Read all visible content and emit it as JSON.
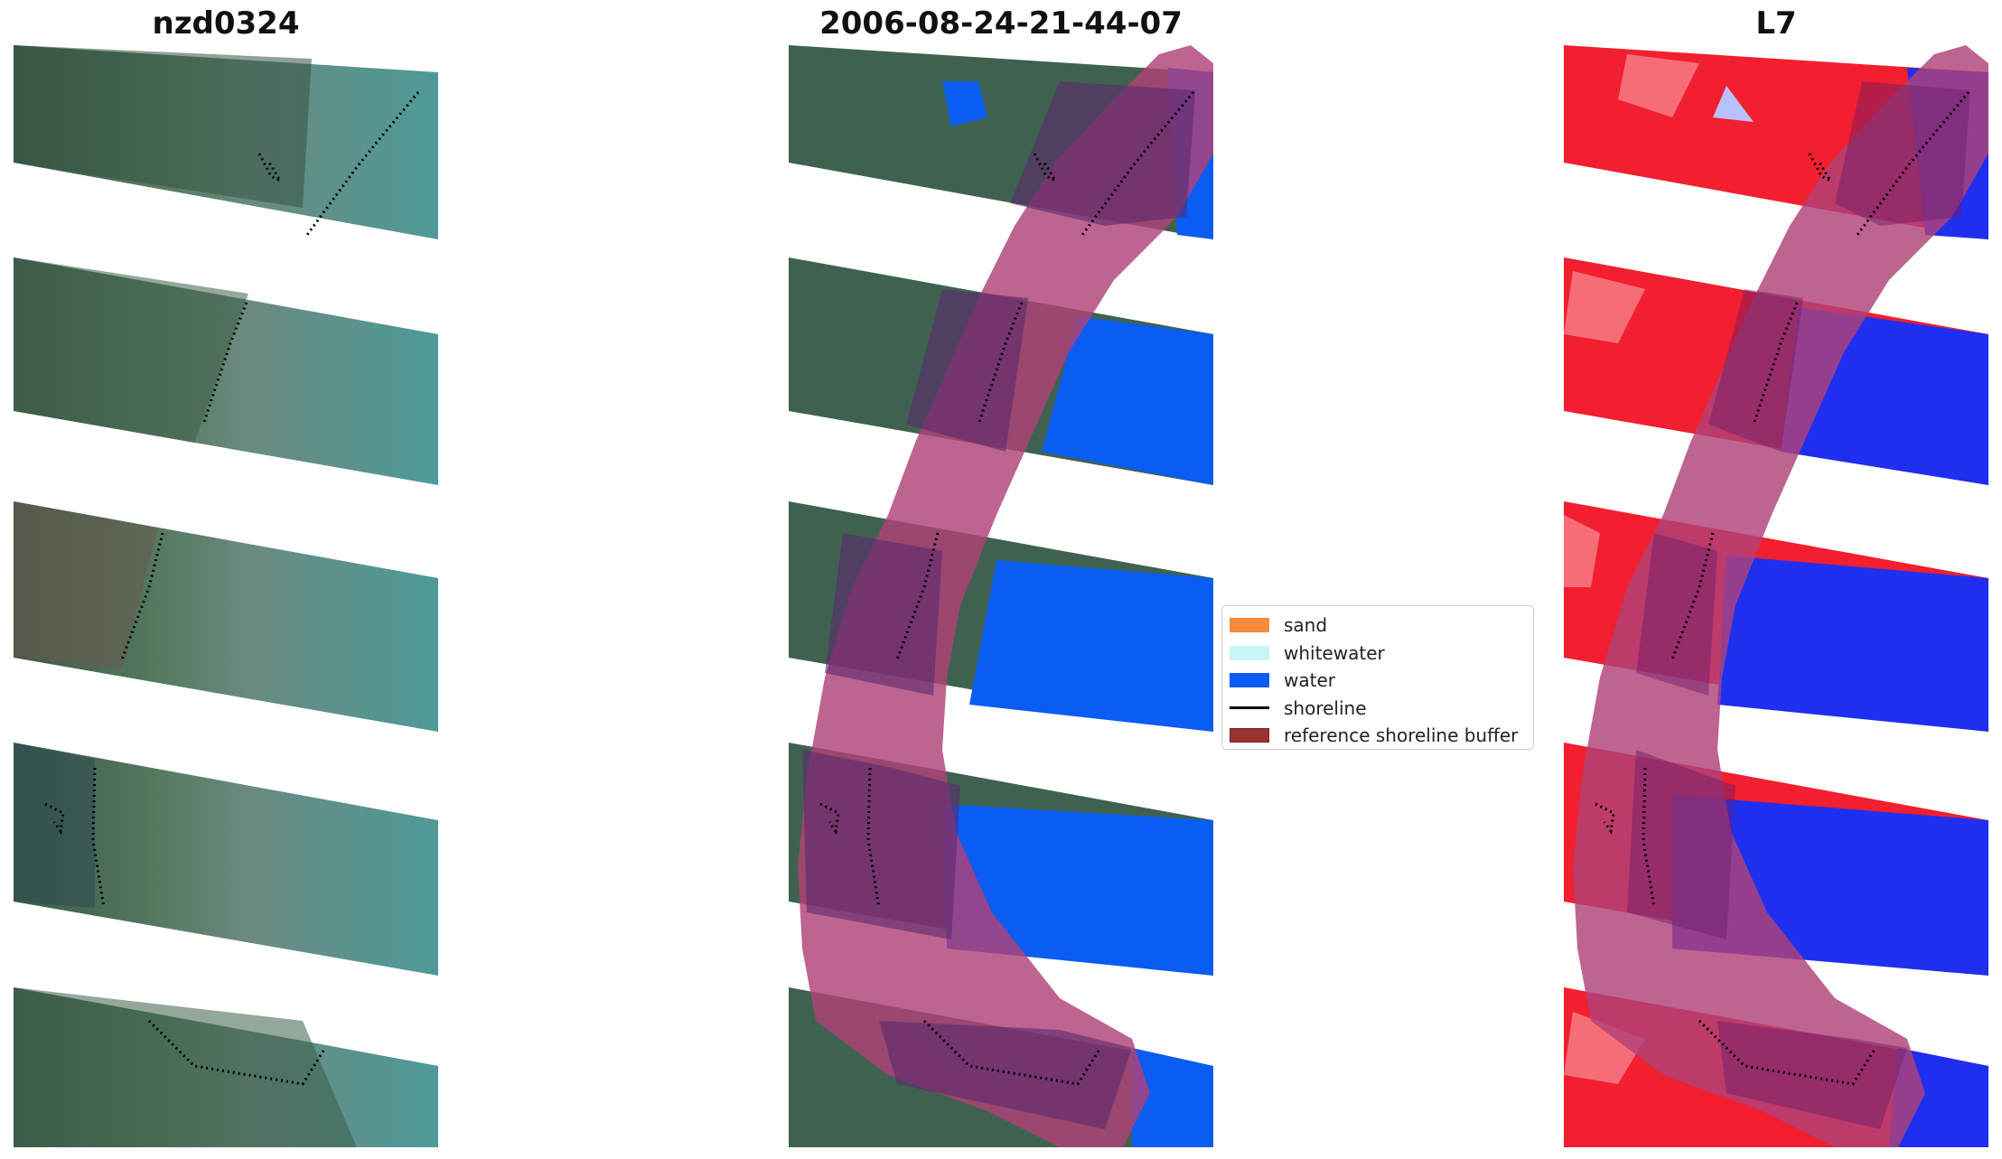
{
  "titles": {
    "left": "nzd0324",
    "center": "2006-08-24-21-44-07",
    "right": "L7"
  },
  "legend": {
    "items": [
      {
        "label": "sand",
        "color": "#f68b3c",
        "kind": "patch"
      },
      {
        "label": "whitewater",
        "color": "#c8f6f8",
        "kind": "patch"
      },
      {
        "label": "water",
        "color": "#0a5cf2",
        "kind": "patch"
      },
      {
        "label": "shoreline",
        "color": "#000000",
        "kind": "line"
      },
      {
        "label": "reference shoreline buffer",
        "color": "#993333",
        "kind": "patch"
      }
    ]
  },
  "colors": {
    "buffer_overlay": "#b04278",
    "water": "#0a5cf2",
    "ndwi_land": "#f21f2f",
    "ndwi_water": "#1f2ff0",
    "rgb_land": "#3f6a52",
    "rgb_water": "#4e9a98"
  }
}
